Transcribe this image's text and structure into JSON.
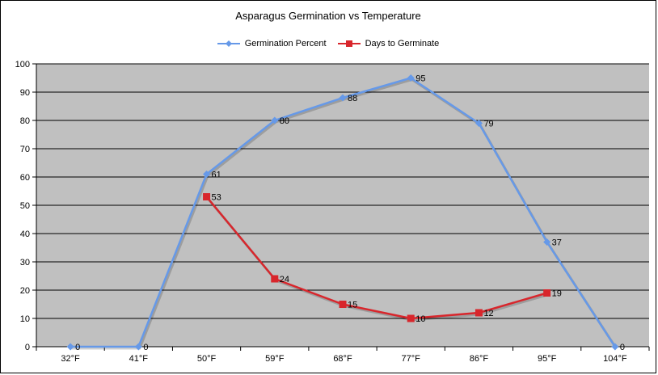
{
  "chart_data": {
    "type": "line",
    "title": "Asparagus Germination vs Temperature",
    "categories": [
      "32°F",
      "41°F",
      "50°F",
      "59°F",
      "68°F",
      "77°F",
      "86°F",
      "95°F",
      "104°F"
    ],
    "ylim": [
      0,
      100
    ],
    "yticks": [
      0,
      10,
      20,
      30,
      40,
      50,
      60,
      70,
      80,
      90,
      100
    ],
    "grid": "horizontal",
    "legend_position": "top",
    "series": [
      {
        "name": "Germination Percent",
        "values": [
          0,
          0,
          61,
          80,
          88,
          95,
          79,
          37,
          0
        ],
        "color": "#6699e8",
        "marker": "diamond"
      },
      {
        "name": "Days to Germinate",
        "values": [
          null,
          null,
          53,
          24,
          15,
          10,
          12,
          19,
          null
        ],
        "color": "#d8262c",
        "marker": "square"
      }
    ]
  }
}
